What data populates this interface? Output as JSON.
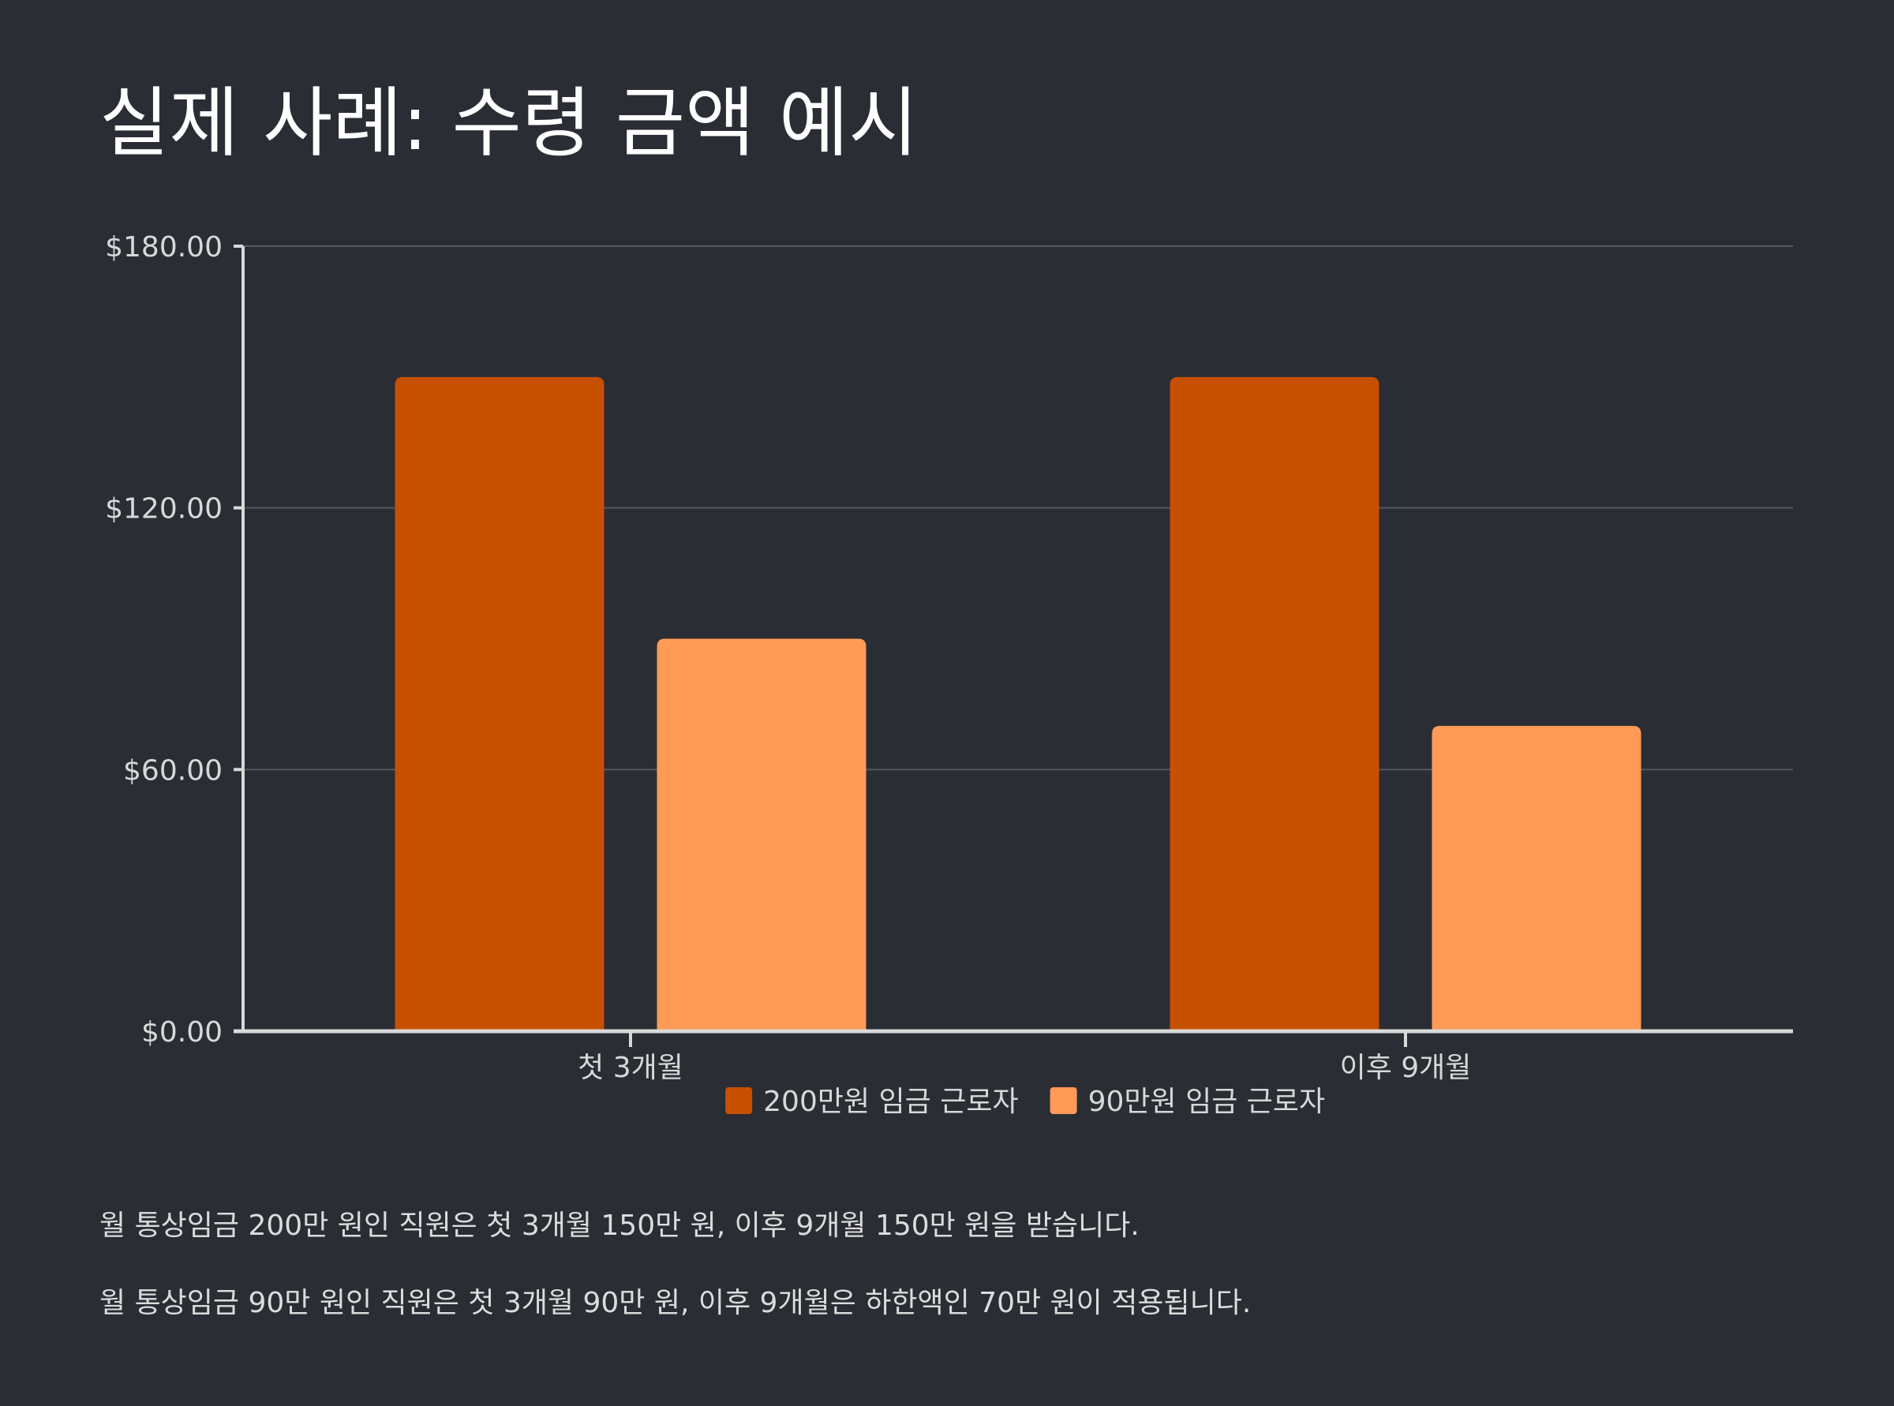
{
  "title": "실제 사례: 수령 금액 예시",
  "chart_data": {
    "type": "bar",
    "categories": [
      "첫 3개월",
      "이후 9개월"
    ],
    "series": [
      {
        "name": "200만원 임금 근로자",
        "values": [
          150,
          150
        ],
        "color": "#c75000"
      },
      {
        "name": "90만원 임금 근로자",
        "values": [
          90,
          70
        ],
        "color": "#ff9a57"
      }
    ],
    "ylim": [
      0,
      180
    ],
    "yticks": [
      0,
      60,
      120,
      180
    ],
    "ytick_labels": [
      "$0.00",
      "$60.00",
      "$120.00",
      "$180.00"
    ],
    "grid": true,
    "legend": "bottom-center"
  },
  "notes": [
    "월 통상임금 200만 원인 직원은 첫 3개월 150만 원, 이후 9개월 150만 원을 받습니다.",
    "월 통상임금 90만 원인 직원은 첫 3개월 90만 원, 이후 9개월은 하한액인 70만 원이 적용됩니다."
  ],
  "colors": {
    "background": "#2a2d34",
    "axis": "#d9d9d9",
    "grid": "#55585e"
  }
}
